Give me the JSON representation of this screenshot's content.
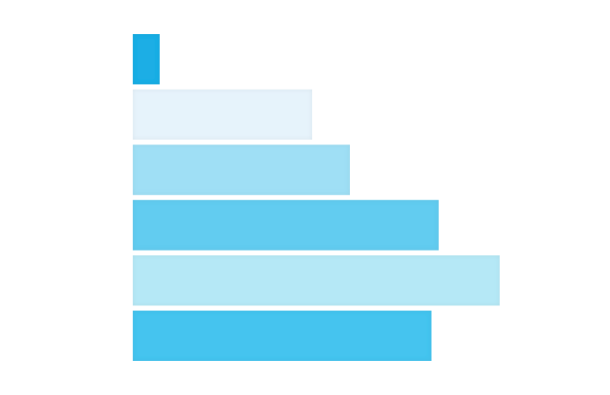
{
  "chart_data": {
    "type": "bar",
    "orientation": "horizontal",
    "values": [
      30,
      200,
      242,
      341,
      409,
      333
    ],
    "colors": [
      "#1aaee5",
      "#e6f3fb",
      "#9fdff5",
      "#62ccf0",
      "#b5e8f6",
      "#44c4ef"
    ],
    "xlim": [
      0,
      410
    ]
  }
}
